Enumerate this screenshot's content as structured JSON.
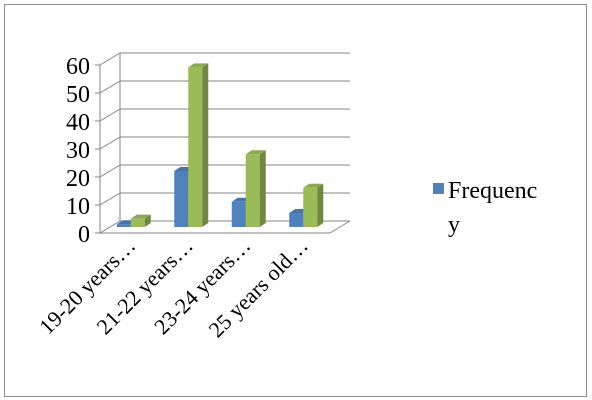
{
  "chart_data": {
    "type": "bar",
    "style": "3d-clustered-column",
    "categories": [
      "19-20 years…",
      "21-22 years…",
      "23-24 years…",
      "25 years old…"
    ],
    "series": [
      {
        "name": "Frequency",
        "values": [
          1,
          20,
          9,
          5
        ],
        "color": "#4f81bd"
      },
      {
        "name": "",
        "values": [
          3,
          57,
          26,
          14
        ],
        "color": "#9bbb59"
      }
    ],
    "yticks": [
      0,
      10,
      20,
      30,
      40,
      50,
      60
    ],
    "ylim": [
      0,
      60
    ],
    "grid": true,
    "legend_position": "right",
    "legend_lines": [
      "Frequenc",
      "y"
    ],
    "title": "",
    "xlabel": "",
    "ylabel": ""
  }
}
